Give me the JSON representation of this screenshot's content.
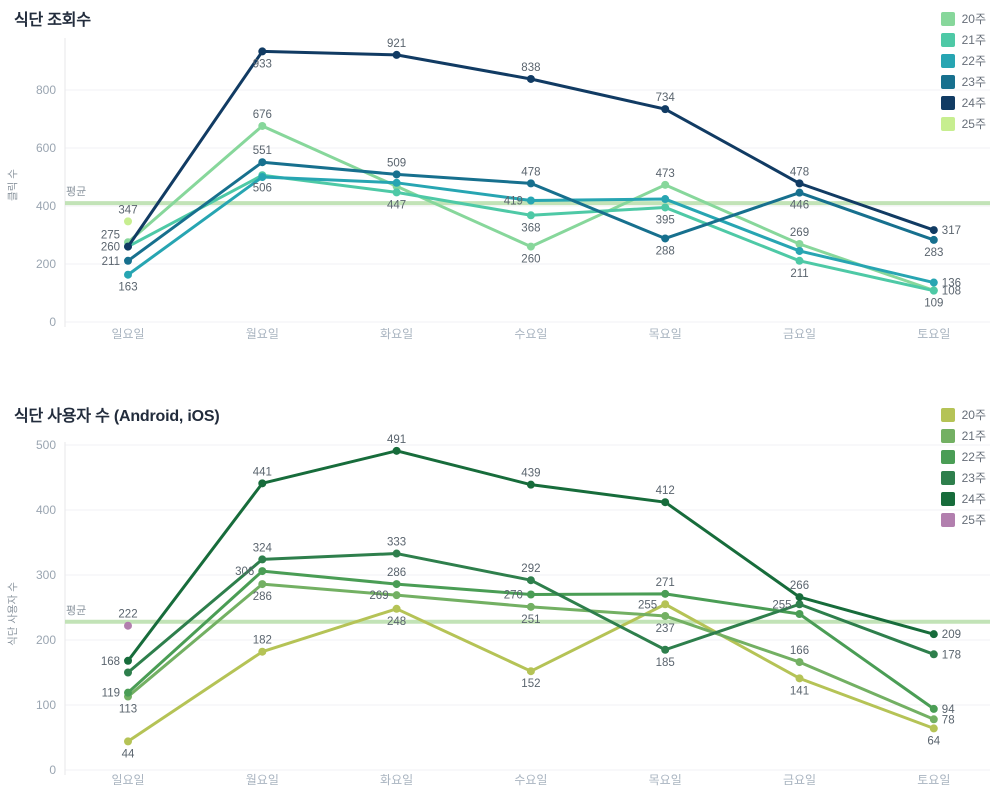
{
  "page": {
    "background": "#ffffff",
    "average_line_color": "#bce0b0",
    "average_label": "평균"
  },
  "chart_data": [
    {
      "type": "line",
      "title": "식단 조회수",
      "ylabel": "클릭 수",
      "categories": [
        "일요일",
        "월요일",
        "화요일",
        "수요일",
        "목요일",
        "금요일",
        "토요일"
      ],
      "yticks": [
        0,
        200,
        400,
        600,
        800
      ],
      "ylim": [
        0,
        1000
      ],
      "grid": true,
      "legend_position": "top-right",
      "average": {
        "label": "평균",
        "value": 410
      },
      "series": [
        {
          "name": "20주",
          "color": "#87d79b",
          "values": [
            275,
            676,
            468,
            260,
            473,
            269,
            109
          ],
          "labels": [
            "275",
            "676",
            "",
            "260",
            "473",
            "269",
            "109"
          ],
          "label_pos": [
            "u",
            "a",
            "",
            "b",
            "a",
            "a",
            "b"
          ]
        },
        {
          "name": "21주",
          "color": "#4ec9a6",
          "values": [
            260,
            506,
            447,
            368,
            395,
            211,
            108
          ],
          "labels": [
            "",
            "506",
            "447",
            "368",
            "395",
            "211",
            "108"
          ],
          "label_pos": [
            "",
            "b",
            "b",
            "b",
            "b",
            "b",
            "r"
          ]
        },
        {
          "name": "22주",
          "color": "#27a5b2",
          "values": [
            163,
            500,
            480,
            419,
            424,
            245,
            136
          ],
          "labels": [
            "163",
            "",
            "",
            "419",
            "",
            "",
            "136"
          ],
          "label_pos": [
            "b",
            "",
            "",
            "l",
            "",
            "",
            "r"
          ]
        },
        {
          "name": "23주",
          "color": "#17708e",
          "values": [
            211,
            551,
            509,
            478,
            288,
            446,
            283
          ],
          "labels": [
            "211",
            "551",
            "509",
            "478",
            "288",
            "446",
            "283"
          ],
          "label_pos": [
            "l",
            "a",
            "a",
            "a",
            "b",
            "b",
            "b"
          ]
        },
        {
          "name": "24주",
          "color": "#113b63",
          "values": [
            260,
            933,
            921,
            838,
            734,
            478,
            317
          ],
          "labels": [
            "260",
            "933",
            "921",
            "838",
            "734",
            "478",
            "317"
          ],
          "label_pos": [
            "l",
            "b",
            "a",
            "a",
            "a",
            "a",
            "r"
          ]
        },
        {
          "name": "25주",
          "color": "#c7ee90",
          "values": [
            347,
            null,
            null,
            null,
            null,
            null,
            null
          ],
          "labels": [
            "347",
            "",
            "",
            "",
            "",
            "",
            ""
          ],
          "label_pos": [
            "a",
            "",
            "",
            "",
            "",
            "",
            ""
          ]
        }
      ]
    },
    {
      "type": "line",
      "title": "식단 사용자 수 (Android, iOS)",
      "ylabel": "식단 사용자 수",
      "categories": [
        "일요일",
        "월요일",
        "화요일",
        "수요일",
        "목요일",
        "금요일",
        "토요일"
      ],
      "yticks": [
        0,
        100,
        200,
        300,
        400,
        500
      ],
      "ylim": [
        0,
        520
      ],
      "grid": true,
      "legend_position": "top-right",
      "average": {
        "label": "평균",
        "value": 228
      },
      "series": [
        {
          "name": "20주",
          "color": "#b5c356",
          "values": [
            44,
            182,
            248,
            152,
            255,
            141,
            64
          ],
          "labels": [
            "44",
            "182",
            "248",
            "152",
            "255",
            "141",
            "64"
          ],
          "label_pos": [
            "b",
            "a",
            "b",
            "b",
            "l",
            "b",
            "b"
          ]
        },
        {
          "name": "21주",
          "color": "#73b063",
          "values": [
            113,
            286,
            269,
            251,
            237,
            166,
            78
          ],
          "labels": [
            "113",
            "286",
            "269",
            "251",
            "237",
            "166",
            "78"
          ],
          "label_pos": [
            "b",
            "b",
            "l",
            "b",
            "b",
            "a",
            "r"
          ]
        },
        {
          "name": "22주",
          "color": "#4a9d55",
          "values": [
            119,
            306,
            286,
            270,
            271,
            240,
            94
          ],
          "labels": [
            "119",
            "306",
            "286",
            "270",
            "271",
            "",
            "94"
          ],
          "label_pos": [
            "l",
            "l",
            "a",
            "l",
            "a",
            "",
            "r"
          ]
        },
        {
          "name": "23주",
          "color": "#2e7f4c",
          "values": [
            150,
            324,
            333,
            292,
            185,
            255,
            178
          ],
          "labels": [
            "",
            "324",
            "333",
            "292",
            "185",
            "255",
            "178"
          ],
          "label_pos": [
            "",
            "a",
            "a",
            "a",
            "b",
            "l",
            "r"
          ]
        },
        {
          "name": "24주",
          "color": "#176c3b",
          "values": [
            168,
            441,
            491,
            439,
            412,
            266,
            209
          ],
          "labels": [
            "168",
            "441",
            "491",
            "439",
            "412",
            "266",
            "209"
          ],
          "label_pos": [
            "l",
            "a",
            "a",
            "a",
            "a",
            "a",
            "r"
          ]
        },
        {
          "name": "25주",
          "color": "#b27fae",
          "values": [
            222,
            null,
            null,
            null,
            null,
            null,
            null
          ],
          "labels": [
            "222",
            "",
            "",
            "",
            "",
            "",
            ""
          ],
          "label_pos": [
            "a",
            "",
            "",
            "",
            "",
            "",
            ""
          ]
        }
      ]
    }
  ]
}
